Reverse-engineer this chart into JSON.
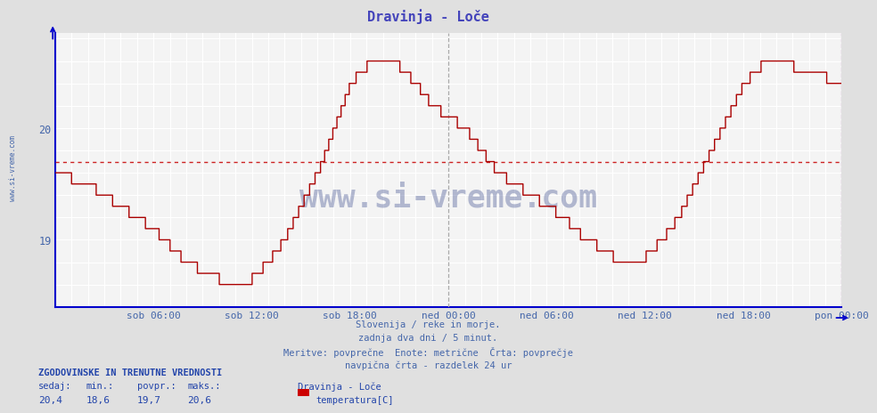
{
  "title": "Dravinja - Loče",
  "title_color": "#4444bb",
  "bg_color": "#e0e0e0",
  "plot_bg_color": "#f4f4f4",
  "line_color": "#aa0000",
  "avg_line_color": "#cc2222",
  "avg_line_value": 19.7,
  "grid_color": "#ffffff",
  "grid_minor_color": "#e8e8e8",
  "axis_color": "#0000cc",
  "tick_color": "#4466aa",
  "y_min": 18.4,
  "y_max": 20.85,
  "y_ticks": [
    19.0,
    20.0
  ],
  "x_labels": [
    "sob 06:00",
    "sob 12:00",
    "sob 18:00",
    "ned 00:00",
    "ned 06:00",
    "ned 12:00",
    "ned 18:00",
    "pon 00:00"
  ],
  "x_tick_positions": [
    0.125,
    0.25,
    0.375,
    0.5,
    0.625,
    0.75,
    0.875,
    1.0
  ],
  "midnight_line_x": 0.5,
  "right_line_x": 1.0,
  "subtitle_lines": [
    "Slovenija / reke in morje.",
    "zadnja dva dni / 5 minut.",
    "Meritve: povprečne  Enote: metrične  Črta: povprečje",
    "navpična črta - razdelek 24 ur"
  ],
  "subtitle_color": "#4466aa",
  "footer_title": "ZGODOVINSKE IN TRENUTNE VREDNOSTI",
  "footer_color": "#2244aa",
  "footer_labels": [
    "sedaj:",
    "min.:",
    "povpr.:",
    "maks.:"
  ],
  "footer_values": [
    "20,4",
    "18,6",
    "19,7",
    "20,6"
  ],
  "legend_station": "Dravinja - Loče",
  "legend_label": "temperatura[C]",
  "legend_color": "#cc0000",
  "watermark_text": "www.si-vreme.com",
  "watermark_color": "#334488",
  "sidebar_text": "www.si-vreme.com",
  "sidebar_color": "#4466aa",
  "n_points": 576
}
